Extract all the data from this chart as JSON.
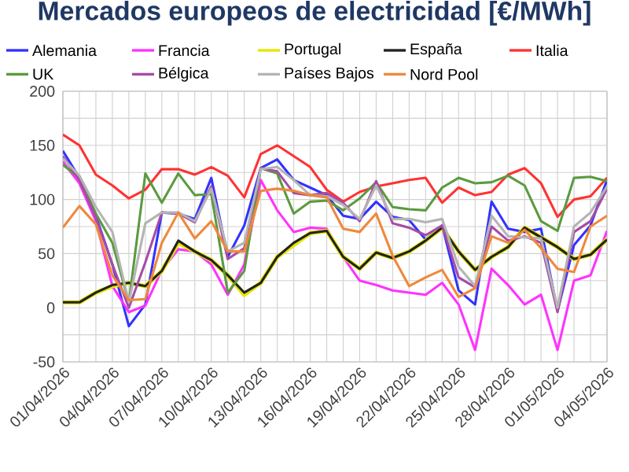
{
  "chart_data": {
    "type": "line",
    "title": "Mercados europeos de electricidad [€/MWh]",
    "x": [
      "2026-04-01",
      "2026-04-02",
      "2026-04-03",
      "2026-04-04",
      "2026-04-05",
      "2026-04-06",
      "2026-04-07",
      "2026-04-08",
      "2026-04-09",
      "2026-04-10",
      "2026-04-11",
      "2026-04-12",
      "2026-04-13",
      "2026-04-14",
      "2026-04-15",
      "2026-04-16",
      "2026-04-17",
      "2026-04-18",
      "2026-04-19",
      "2026-04-20",
      "2026-04-21",
      "2026-04-22",
      "2026-04-23",
      "2026-04-24",
      "2026-04-25",
      "2026-04-26",
      "2026-04-27",
      "2026-04-28",
      "2026-04-29",
      "2026-04-30",
      "2026-05-01",
      "2026-05-02",
      "2026-05-03",
      "2026-05-04"
    ],
    "series": [
      {
        "name": "Alemania",
        "color": "#3333ff",
        "values": [
          145,
          120,
          85,
          40,
          -17,
          3,
          88,
          87,
          82,
          120,
          47,
          76,
          129,
          137,
          118,
          111,
          104,
          85,
          82,
          98,
          84,
          81,
          63,
          76,
          16,
          3,
          98,
          73,
          70,
          73,
          -3,
          58,
          76,
          118
        ]
      },
      {
        "name": "Francia",
        "color": "#ff33ff",
        "values": [
          135,
          115,
          80,
          20,
          -4,
          2,
          35,
          54,
          52,
          40,
          12,
          40,
          118,
          90,
          70,
          74,
          73,
          47,
          25,
          21,
          16,
          14,
          12,
          23,
          3,
          -39,
          36,
          21,
          3,
          12,
          -39,
          25,
          30,
          71
        ]
      },
      {
        "name": "Portugal",
        "color": "#e6e600",
        "values": [
          5,
          5,
          14,
          20,
          23,
          20,
          34,
          60,
          52,
          44,
          30,
          12,
          23,
          47,
          58,
          69,
          71,
          47,
          36,
          51,
          46,
          52,
          62,
          74,
          52,
          35,
          47,
          56,
          74,
          65,
          56,
          45,
          49,
          63
        ]
      },
      {
        "name": "España",
        "color": "#222222",
        "values": [
          5,
          5,
          14,
          21,
          23,
          20,
          34,
          62,
          52,
          44,
          30,
          14,
          23,
          47,
          60,
          69,
          71,
          47,
          36,
          51,
          46,
          52,
          62,
          74,
          52,
          35,
          47,
          56,
          74,
          65,
          56,
          45,
          49,
          63
        ]
      },
      {
        "name": "Italia",
        "color": "#ff3333",
        "values": [
          160,
          150,
          123,
          113,
          101,
          109,
          128,
          128,
          123,
          130,
          122,
          102,
          142,
          150,
          140,
          130,
          109,
          98,
          107,
          112,
          115,
          118,
          120,
          97,
          111,
          104,
          107,
          123,
          129,
          115,
          84,
          100,
          103,
          120
        ]
      },
      {
        "name": "UK",
        "color": "#5b9b3f",
        "values": [
          132,
          120,
          87,
          60,
          5,
          124,
          97,
          124,
          104,
          105,
          14,
          34,
          129,
          124,
          87,
          98,
          99,
          90,
          101,
          116,
          93,
          91,
          90,
          111,
          120,
          115,
          116,
          122,
          113,
          80,
          71,
          120,
          121,
          117
        ]
      },
      {
        "name": "Bélgica",
        "color": "#a64ca6",
        "values": [
          140,
          118,
          83,
          40,
          0,
          42,
          88,
          87,
          79,
          112,
          45,
          55,
          129,
          126,
          106,
          104,
          106,
          97,
          80,
          117,
          78,
          74,
          67,
          76,
          28,
          19,
          75,
          62,
          66,
          60,
          -4,
          70,
          80,
          110
        ]
      },
      {
        "name": "Países Bajos",
        "color": "#b4b4b4",
        "values": [
          138,
          122,
          93,
          70,
          5,
          78,
          88,
          88,
          80,
          110,
          52,
          60,
          128,
          130,
          118,
          104,
          103,
          95,
          82,
          113,
          82,
          82,
          79,
          82,
          38,
          20,
          85,
          66,
          65,
          64,
          0,
          75,
          88,
          112
        ]
      },
      {
        "name": "Nord Pool",
        "color": "#f0883c",
        "values": [
          74,
          94,
          77,
          30,
          7,
          8,
          60,
          88,
          64,
          80,
          52,
          52,
          108,
          110,
          108,
          104,
          102,
          73,
          70,
          87,
          48,
          20,
          28,
          35,
          10,
          18,
          66,
          60,
          72,
          55,
          36,
          33,
          75,
          85
        ]
      }
    ],
    "xlim": [
      "2026-04-01",
      "2026-05-04"
    ],
    "xticks": [
      {
        "value": "2026-04-01",
        "label": "01/04/2026"
      },
      {
        "value": "2026-04-02",
        "label": null
      },
      {
        "value": "2026-04-03",
        "label": null
      },
      {
        "value": "2026-04-04",
        "label": "04/04/2026"
      },
      {
        "value": "2026-04-05",
        "label": null
      },
      {
        "value": "2026-04-06",
        "label": null
      },
      {
        "value": "2026-04-07",
        "label": "07/04/2026"
      },
      {
        "value": "2026-04-08",
        "label": null
      },
      {
        "value": "2026-04-09",
        "label": null
      },
      {
        "value": "2026-04-10",
        "label": "10/04/2026"
      },
      {
        "value": "2026-04-11",
        "label": null
      },
      {
        "value": "2026-04-12",
        "label": null
      },
      {
        "value": "2026-04-13",
        "label": "13/04/2026"
      },
      {
        "value": "2026-04-14",
        "label": null
      },
      {
        "value": "2026-04-15",
        "label": null
      },
      {
        "value": "2026-04-16",
        "label": "16/04/2026"
      },
      {
        "value": "2026-04-17",
        "label": null
      },
      {
        "value": "2026-04-18",
        "label": null
      },
      {
        "value": "2026-04-19",
        "label": "19/04/2026"
      },
      {
        "value": "2026-04-20",
        "label": null
      },
      {
        "value": "2026-04-21",
        "label": null
      },
      {
        "value": "2026-04-22",
        "label": "22/04/2026"
      },
      {
        "value": "2026-04-23",
        "label": null
      },
      {
        "value": "2026-04-24",
        "label": null
      },
      {
        "value": "2026-04-25",
        "label": "25/04/2026"
      },
      {
        "value": "2026-04-26",
        "label": null
      },
      {
        "value": "2026-04-27",
        "label": null
      },
      {
        "value": "2026-04-28",
        "label": "28/04/2026"
      },
      {
        "value": "2026-04-29",
        "label": null
      },
      {
        "value": "2026-04-30",
        "label": null
      },
      {
        "value": "2026-05-01",
        "label": "01/05/2026"
      },
      {
        "value": "2026-05-02",
        "label": null
      },
      {
        "value": "2026-05-03",
        "label": null
      },
      {
        "value": "2026-05-04",
        "label": "04/05/2026"
      }
    ],
    "ylim": [
      -50,
      200
    ],
    "yticks": [
      -50,
      {
        "value": -25,
        "label": null
      },
      0,
      {
        "value": 25,
        "label": null
      },
      50,
      {
        "value": 75,
        "label": null
      },
      100,
      {
        "value": 125,
        "label": null
      },
      150,
      {
        "value": 175,
        "label": null
      },
      200
    ],
    "grid": true,
    "legend": "top",
    "marker": "none",
    "line_style": "solid"
  }
}
